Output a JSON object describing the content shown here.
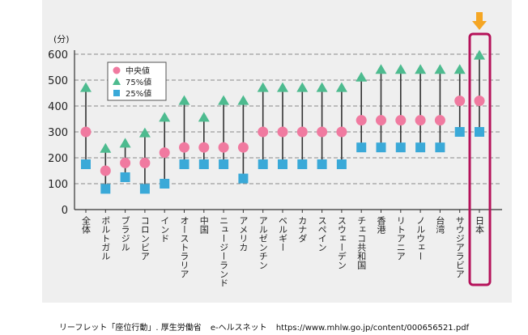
{
  "chart_data": {
    "type": "scatter",
    "title": "",
    "ylabel": "(分)",
    "xlabel": "",
    "ylim": [
      0,
      600
    ],
    "yticks": [
      0,
      100,
      200,
      300,
      400,
      500,
      600
    ],
    "grid": true,
    "legend_placement": "top-left",
    "categories": [
      "全体",
      "ポルトガル",
      "ブラジル",
      "コロンビア",
      "インド",
      "オーストラリア",
      "中国",
      "ニュージーランド",
      "アメリカ",
      "アルゼンチン",
      "ベルギー",
      "カナダ",
      "スペイン",
      "スウェーデン",
      "チェコ共和国",
      "香港",
      "リトアニア",
      "ノルウェー",
      "台湾",
      "サウジアラビア",
      "日本"
    ],
    "series": [
      {
        "name": "中央値",
        "marker": "circle",
        "color": "#f07aa0",
        "values": [
          300,
          150,
          180,
          180,
          220,
          240,
          240,
          240,
          240,
          300,
          300,
          300,
          300,
          300,
          345,
          345,
          345,
          345,
          345,
          420,
          420
        ]
      },
      {
        "name": "75%値",
        "marker": "triangle",
        "color": "#4dbb8f",
        "values": [
          470,
          235,
          255,
          295,
          355,
          420,
          355,
          420,
          420,
          470,
          470,
          470,
          470,
          470,
          510,
          540,
          540,
          540,
          540,
          540,
          595
        ]
      },
      {
        "name": "25%値",
        "marker": "square",
        "color": "#3aa9d8",
        "values": [
          175,
          80,
          125,
          80,
          100,
          175,
          175,
          175,
          120,
          175,
          175,
          175,
          175,
          175,
          240,
          240,
          240,
          240,
          240,
          300,
          300
        ]
      }
    ],
    "highlight": {
      "category": "日本",
      "color": "#b5125a",
      "arrow_color": "#f5a623"
    }
  },
  "footer": {
    "source": "リーフレット「座位行動」. 厚生労働省",
    "site": "e-ヘルスネット",
    "url": "https://www.mhlw.go.jp/content/000656521.pdf"
  }
}
